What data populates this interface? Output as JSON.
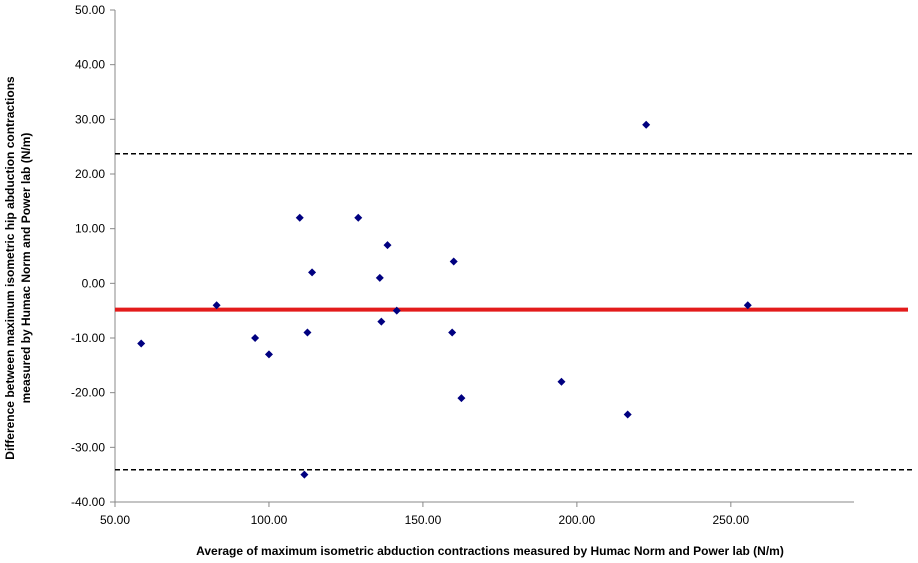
{
  "chart_data": {
    "type": "scatter",
    "title": "",
    "xlabel": "Average of maximum isometric abduction contractions measured by Humac Norm and Power lab (N/m)",
    "ylabel_line1": "Difference between maximum isometric hip abduction contractions",
    "ylabel_line2": "measured by Humac Norm and Power lab (N/m)",
    "xlim": [
      50,
      290
    ],
    "ylim": [
      -40,
      50
    ],
    "x_ticks": [
      "50.00",
      "100.00",
      "150.00",
      "200.00",
      "250.00"
    ],
    "y_ticks": [
      "50.00",
      "40.00",
      "30.00",
      "20.00",
      "10.00",
      "0.00",
      "-10.00",
      "-20.00",
      "-30.00",
      "-40.00"
    ],
    "points": [
      {
        "x": 58.5,
        "y": -11
      },
      {
        "x": 83,
        "y": -4
      },
      {
        "x": 95.5,
        "y": -10
      },
      {
        "x": 100,
        "y": -13
      },
      {
        "x": 110,
        "y": 12
      },
      {
        "x": 111.5,
        "y": -35
      },
      {
        "x": 112.5,
        "y": -9
      },
      {
        "x": 114,
        "y": 2
      },
      {
        "x": 129,
        "y": 12
      },
      {
        "x": 136,
        "y": 1
      },
      {
        "x": 136.5,
        "y": -7
      },
      {
        "x": 138.5,
        "y": 7
      },
      {
        "x": 141.5,
        "y": -5
      },
      {
        "x": 159.5,
        "y": -9
      },
      {
        "x": 160,
        "y": 4
      },
      {
        "x": 162.5,
        "y": -21
      },
      {
        "x": 195,
        "y": -18
      },
      {
        "x": 216.5,
        "y": -24
      },
      {
        "x": 222.5,
        "y": 29
      },
      {
        "x": 255.5,
        "y": -4
      }
    ],
    "mean_line": -4.8,
    "upper_limit": 23.7,
    "lower_limit": -34.1,
    "colors": {
      "points": "#000080",
      "mean_line": "#e31b1b",
      "limit_lines": "#000000",
      "axis": "#888888"
    },
    "grid": false,
    "legend": "none"
  }
}
